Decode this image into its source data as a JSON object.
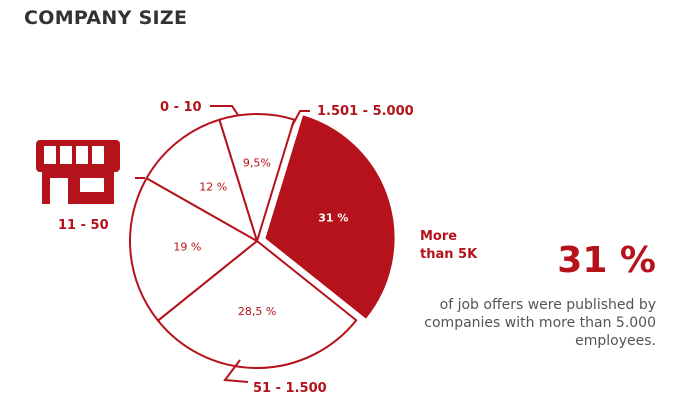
{
  "page": {
    "title": "COMPANY SIZE"
  },
  "highlight": {
    "value": "31 %",
    "caption": "of job offers were published by companies with more than 5.000 employees."
  },
  "icons": {
    "store": "storefront-icon"
  },
  "colors": {
    "accent": "#b5121b",
    "outline": "#b5121b",
    "fill_light": "#ffffff",
    "text_dark": "#333333"
  },
  "chart_data": {
    "type": "pie",
    "title": "COMPANY SIZE",
    "slices": [
      {
        "category": "More than 5K",
        "value": 31,
        "label": "31 %",
        "highlighted": true
      },
      {
        "category": "51 - 1.500",
        "value": 28.5,
        "label": "28,5 %",
        "highlighted": false
      },
      {
        "category": "11 - 50",
        "value": 19,
        "label": "19 %",
        "highlighted": false
      },
      {
        "category": "0 - 10",
        "value": 12,
        "label": "12 %",
        "highlighted": false
      },
      {
        "category": "1.501 - 5.000",
        "value": 9.5,
        "label": "9,5%",
        "highlighted": false
      }
    ]
  }
}
